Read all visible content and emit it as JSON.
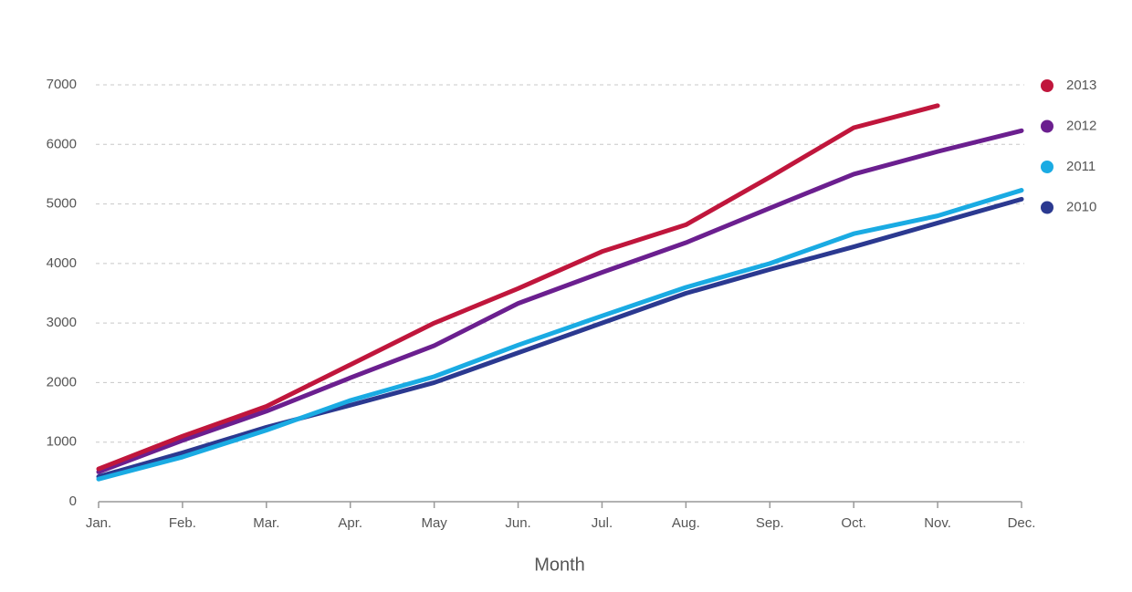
{
  "chart_data": {
    "type": "line",
    "x_label": "Month",
    "categories": [
      "Jan.",
      "Feb.",
      "Mar.",
      "Apr.",
      "May",
      "Jun.",
      "Jul.",
      "Aug.",
      "Sep.",
      "Oct.",
      "Nov.",
      "Dec."
    ],
    "series": [
      {
        "name": "2013",
        "color": "#c0163c",
        "values": [
          550,
          1100,
          1600,
          2300,
          3000,
          3580,
          4200,
          4650,
          5450,
          6280,
          6650,
          null
        ]
      },
      {
        "name": "2012",
        "color": "#6b1f8f",
        "values": [
          500,
          1030,
          1520,
          2080,
          2620,
          3330,
          3850,
          4350,
          4930,
          5500,
          5880,
          6230
        ]
      },
      {
        "name": "2011",
        "color": "#1aabe3",
        "values": [
          380,
          750,
          1200,
          1700,
          2100,
          2630,
          3120,
          3600,
          4000,
          4500,
          4800,
          5230
        ]
      },
      {
        "name": "2010",
        "color": "#2b3990",
        "values": [
          420,
          820,
          1250,
          1620,
          2000,
          2500,
          3000,
          3500,
          3900,
          4280,
          4680,
          5080
        ]
      }
    ],
    "ylim": [
      0,
      7000
    ],
    "yticks": [
      0,
      1000,
      2000,
      3000,
      4000,
      5000,
      6000,
      7000
    ],
    "grid": true,
    "legend": "right"
  }
}
